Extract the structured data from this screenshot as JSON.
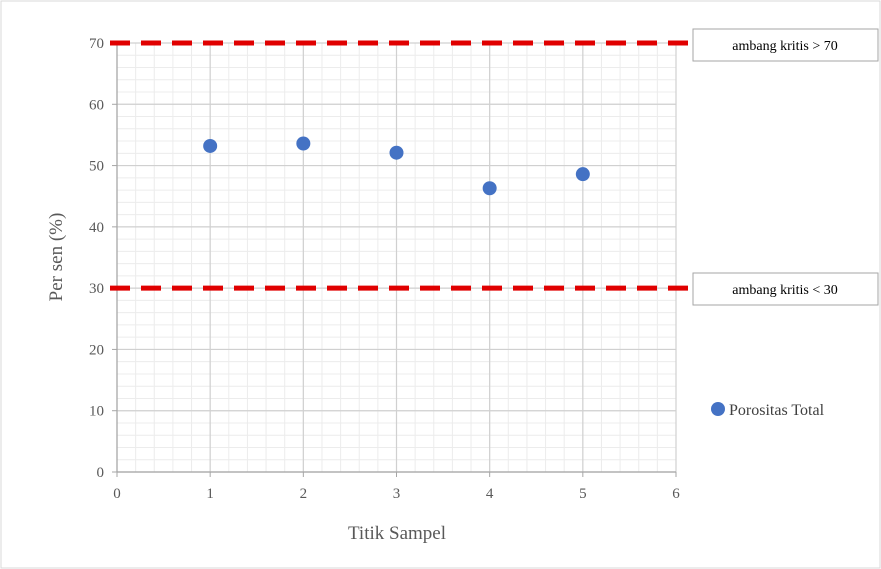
{
  "chart_data": {
    "type": "scatter",
    "title": "",
    "xlabel": "Titik Sampel",
    "ylabel": "Per sen (%)",
    "xlim": [
      0,
      6
    ],
    "ylim": [
      0,
      70
    ],
    "x_ticks": [
      0,
      1,
      2,
      3,
      4,
      5,
      6
    ],
    "y_ticks": [
      0,
      10,
      20,
      30,
      40,
      50,
      60,
      70
    ],
    "grid": true,
    "legend_position": "right",
    "series": [
      {
        "name": "Porositas Total",
        "color": "#4472C4",
        "points": [
          {
            "x": 1,
            "y": 53.2
          },
          {
            "x": 2,
            "y": 53.6
          },
          {
            "x": 3,
            "y": 52.1
          },
          {
            "x": 4,
            "y": 46.3
          },
          {
            "x": 5,
            "y": 48.6
          }
        ]
      }
    ],
    "thresholds": [
      {
        "y": 70,
        "label": "ambang kritis > 70",
        "color": "#E00000"
      },
      {
        "y": 30,
        "label": "ambang kritis < 30",
        "color": "#E00000"
      }
    ]
  }
}
